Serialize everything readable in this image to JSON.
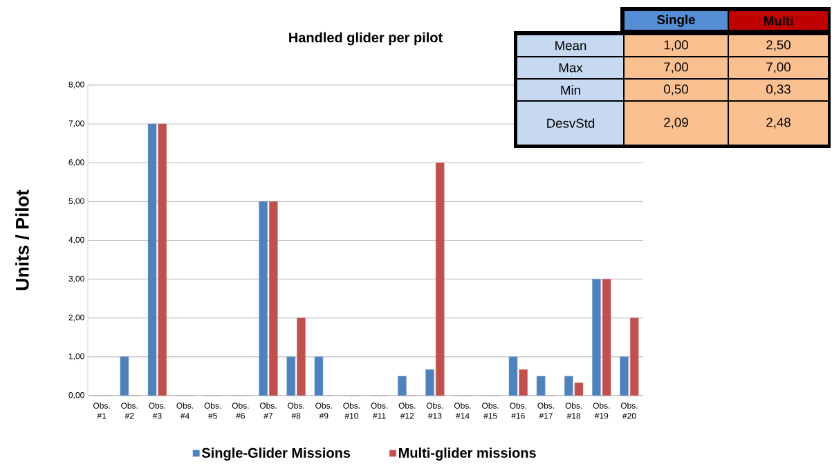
{
  "chart_data": [
    {
      "type": "bar",
      "title": "Handled glider per pilot",
      "ylabel": "Units / Pilot",
      "categories": [
        "Obs. #1",
        "Obs. #2",
        "Obs. #3",
        "Obs. #4",
        "Obs. #5",
        "Obs. #6",
        "Obs. #7",
        "Obs. #8",
        "Obs. #9",
        "Obs. #10",
        "Obs. #11",
        "Obs. #12",
        "Obs. #13",
        "Obs. #14",
        "Obs. #15",
        "Obs. #16",
        "Obs. #17",
        "Obs. #18",
        "Obs. #19",
        "Obs. #20"
      ],
      "series": [
        {
          "name": "Single-Glider Missions",
          "color": "#4f81bd",
          "values": [
            0,
            1,
            7,
            0,
            0,
            0,
            5,
            1,
            1,
            0,
            0,
            0.5,
            0.67,
            0,
            0,
            1,
            0.5,
            0.5,
            3,
            1
          ]
        },
        {
          "name": "Multi-glider missions",
          "color": "#c0504d",
          "values": [
            0,
            0,
            7,
            0,
            0,
            0,
            5,
            2,
            0,
            0,
            0,
            0,
            6,
            0,
            0,
            0.67,
            0,
            0.33,
            3,
            2
          ]
        }
      ],
      "ylim": [
        0,
        8
      ],
      "yticks": [
        {
          "value": 0,
          "label": "0,00"
        },
        {
          "value": 1,
          "label": "1,00"
        },
        {
          "value": 2,
          "label": "2,00"
        },
        {
          "value": 3,
          "label": "3,00"
        },
        {
          "value": 4,
          "label": "4,00"
        },
        {
          "value": 5,
          "label": "5,00"
        },
        {
          "value": 6,
          "label": "6,00"
        },
        {
          "value": 7,
          "label": "7,00"
        },
        {
          "value": 8,
          "label": "8,00"
        }
      ],
      "grid": "y",
      "legend": "bottom"
    },
    {
      "type": "other",
      "categories": [
        "Single",
        "Multi"
      ],
      "y_categories": [
        "Mean",
        "Max",
        "Min",
        "DesvStd"
      ],
      "cell_labels": [
        [
          "1,00",
          "2,50"
        ],
        [
          "7,00",
          "7,00"
        ],
        [
          "0,50",
          "0,33"
        ],
        [
          "2,09",
          "2,48"
        ]
      ]
    }
  ]
}
